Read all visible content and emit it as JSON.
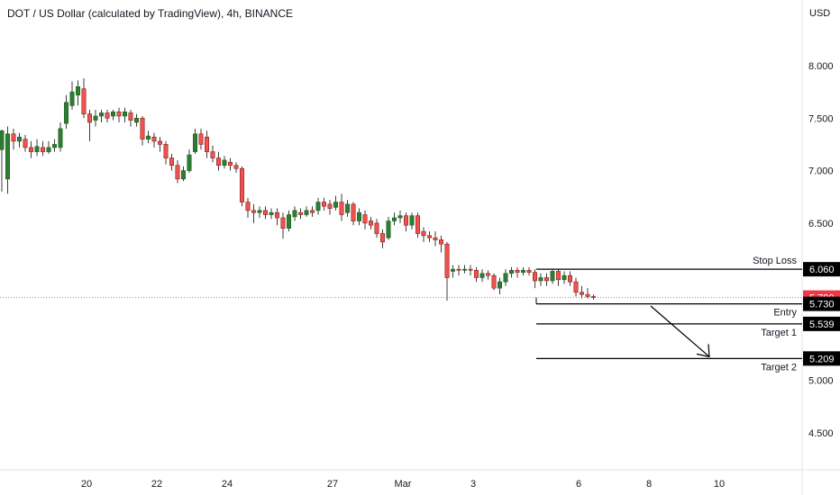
{
  "chart_data": {
    "type": "candlestick",
    "title": "DOT / US Dollar (calculated by TradingView), 4h, BINANCE",
    "currency_label": "USD",
    "y_ticks": [
      "8.000",
      "7.500",
      "7.000",
      "6.500",
      "5.000",
      "4.500"
    ],
    "y_tick_values": [
      8.0,
      7.5,
      7.0,
      6.5,
      5.0,
      4.5
    ],
    "x_ticks": [
      "20",
      "22",
      "24",
      "27",
      "Mar",
      "3",
      "6",
      "8",
      "10"
    ],
    "ylim": [
      4.25,
      8.6
    ],
    "grid": false,
    "candles": [
      [
        7.2,
        7.38,
        7.39,
        6.8
      ],
      [
        6.92,
        7.35,
        7.42,
        6.78
      ],
      [
        7.35,
        7.28,
        7.4,
        7.2
      ],
      [
        7.28,
        7.32,
        7.36,
        7.22
      ],
      [
        7.3,
        7.22,
        7.34,
        7.18
      ],
      [
        7.22,
        7.18,
        7.28,
        7.12
      ],
      [
        7.18,
        7.23,
        7.3,
        7.14
      ],
      [
        7.22,
        7.18,
        7.28,
        7.14
      ],
      [
        7.18,
        7.22,
        7.28,
        7.16
      ],
      [
        7.22,
        7.25,
        7.3,
        7.18
      ],
      [
        7.22,
        7.4,
        7.46,
        7.18
      ],
      [
        7.45,
        7.65,
        7.72,
        7.4
      ],
      [
        7.62,
        7.75,
        7.85,
        7.58
      ],
      [
        7.72,
        7.8,
        7.86,
        7.62
      ],
      [
        7.78,
        7.54,
        7.88,
        7.5
      ],
      [
        7.54,
        7.46,
        7.58,
        7.28
      ],
      [
        7.48,
        7.52,
        7.58,
        7.42
      ],
      [
        7.52,
        7.55,
        7.58,
        7.46
      ],
      [
        7.55,
        7.5,
        7.58,
        7.46
      ],
      [
        7.52,
        7.56,
        7.58,
        7.48
      ],
      [
        7.56,
        7.52,
        7.6,
        7.46
      ],
      [
        7.52,
        7.56,
        7.6,
        7.46
      ],
      [
        7.55,
        7.48,
        7.58,
        7.42
      ],
      [
        7.46,
        7.5,
        7.54,
        7.42
      ],
      [
        7.5,
        7.3,
        7.52,
        7.24
      ],
      [
        7.3,
        7.33,
        7.38,
        7.26
      ],
      [
        7.32,
        7.28,
        7.36,
        7.22
      ],
      [
        7.28,
        7.25,
        7.32,
        7.18
      ],
      [
        7.25,
        7.12,
        7.28,
        7.06
      ],
      [
        7.12,
        7.05,
        7.16,
        7.0
      ],
      [
        7.05,
        6.92,
        7.1,
        6.88
      ],
      [
        6.92,
        7.0,
        7.04,
        6.9
      ],
      [
        7.0,
        7.15,
        7.2,
        6.98
      ],
      [
        7.18,
        7.35,
        7.4,
        7.16
      ],
      [
        7.35,
        7.25,
        7.4,
        7.2
      ],
      [
        7.32,
        7.18,
        7.38,
        7.12
      ],
      [
        7.18,
        7.12,
        7.24,
        7.08
      ],
      [
        7.12,
        7.05,
        7.18,
        7.0
      ],
      [
        7.05,
        7.1,
        7.14,
        7.02
      ],
      [
        7.08,
        7.05,
        7.12,
        7.0
      ],
      [
        7.05,
        7.02,
        7.08,
        6.98
      ],
      [
        7.02,
        6.7,
        7.04,
        6.66
      ],
      [
        6.7,
        6.62,
        6.74,
        6.55
      ],
      [
        6.62,
        6.6,
        6.68,
        6.5
      ],
      [
        6.6,
        6.62,
        6.66,
        6.55
      ],
      [
        6.62,
        6.58,
        6.66,
        6.54
      ],
      [
        6.58,
        6.6,
        6.64,
        6.54
      ],
      [
        6.6,
        6.55,
        6.64,
        6.48
      ],
      [
        6.55,
        6.45,
        6.6,
        6.35
      ],
      [
        6.45,
        6.58,
        6.62,
        6.42
      ],
      [
        6.56,
        6.62,
        6.66,
        6.52
      ],
      [
        6.6,
        6.58,
        6.64,
        6.54
      ],
      [
        6.58,
        6.62,
        6.66,
        6.56
      ],
      [
        6.62,
        6.6,
        6.66,
        6.56
      ],
      [
        6.62,
        6.7,
        6.74,
        6.58
      ],
      [
        6.7,
        6.66,
        6.74,
        6.62
      ],
      [
        6.68,
        6.64,
        6.72,
        6.58
      ],
      [
        6.65,
        6.7,
        6.76,
        6.62
      ],
      [
        6.7,
        6.58,
        6.78,
        6.52
      ],
      [
        6.6,
        6.68,
        6.72,
        6.56
      ],
      [
        6.68,
        6.52,
        6.7,
        6.48
      ],
      [
        6.52,
        6.6,
        6.64,
        6.48
      ],
      [
        6.58,
        6.5,
        6.62,
        6.44
      ],
      [
        6.52,
        6.48,
        6.56,
        6.44
      ],
      [
        6.5,
        6.4,
        6.54,
        6.36
      ],
      [
        6.4,
        6.32,
        6.44,
        6.26
      ],
      [
        6.36,
        6.52,
        6.56,
        6.34
      ],
      [
        6.52,
        6.55,
        6.6,
        6.48
      ],
      [
        6.55,
        6.57,
        6.62,
        6.5
      ],
      [
        6.57,
        6.48,
        6.6,
        6.42
      ],
      [
        6.48,
        6.57,
        6.6,
        6.44
      ],
      [
        6.57,
        6.4,
        6.6,
        6.36
      ],
      [
        6.42,
        6.38,
        6.46,
        6.32
      ],
      [
        6.38,
        6.36,
        6.42,
        6.32
      ],
      [
        6.36,
        6.34,
        6.42,
        6.28
      ],
      [
        6.34,
        6.3,
        6.38,
        6.22
      ],
      [
        6.3,
        5.98,
        6.32,
        5.76
      ],
      [
        6.04,
        6.06,
        6.1,
        5.98
      ],
      [
        6.06,
        6.05,
        6.1,
        6.0
      ],
      [
        6.05,
        6.06,
        6.1,
        6.02
      ],
      [
        6.06,
        6.05,
        6.1,
        6.0
      ],
      [
        6.05,
        5.98,
        6.08,
        5.94
      ],
      [
        5.98,
        6.02,
        6.06,
        5.94
      ],
      [
        6.02,
        6.0,
        6.05,
        5.96
      ],
      [
        6.0,
        5.88,
        6.02,
        5.86
      ],
      [
        5.88,
        5.94,
        5.98,
        5.82
      ],
      [
        5.94,
        6.02,
        6.06,
        5.9
      ],
      [
        6.02,
        6.05,
        6.08,
        5.98
      ],
      [
        6.05,
        6.03,
        6.08,
        5.98
      ],
      [
        6.03,
        6.05,
        6.08,
        6.0
      ],
      [
        6.05,
        6.03,
        6.08,
        6.0
      ],
      [
        6.03,
        5.95,
        6.06,
        5.88
      ],
      [
        5.95,
        5.98,
        6.02,
        5.9
      ],
      [
        5.98,
        5.95,
        6.02,
        5.9
      ],
      [
        5.95,
        6.04,
        6.06,
        5.92
      ],
      [
        6.04,
        5.96,
        6.06,
        5.9
      ],
      [
        5.96,
        6.0,
        6.04,
        5.92
      ],
      [
        6.0,
        5.94,
        6.04,
        5.9
      ],
      [
        5.94,
        5.84,
        5.98,
        5.8
      ],
      [
        5.84,
        5.82,
        5.9,
        5.78
      ],
      [
        5.82,
        5.8,
        5.88,
        5.78
      ],
      [
        5.8,
        5.79,
        5.82,
        5.77
      ]
    ],
    "current_price": "5.790",
    "levels": [
      {
        "name": "Stop Loss",
        "value": 6.06,
        "label": "6.060"
      },
      {
        "name": "Entry",
        "value": 5.73,
        "label": "5.730"
      },
      {
        "name": "Target 1",
        "value": 5.539,
        "label": "5.539"
      },
      {
        "name": "Target 2",
        "value": 5.209,
        "label": "5.209"
      }
    ],
    "colors": {
      "up": "#26a69a",
      "up_border": "#1b5e20",
      "up_fill": "#2e7d32",
      "down_fill": "#ef5350",
      "down_border": "#8b1c1c",
      "level": "#000000",
      "price": "#f23645"
    }
  }
}
